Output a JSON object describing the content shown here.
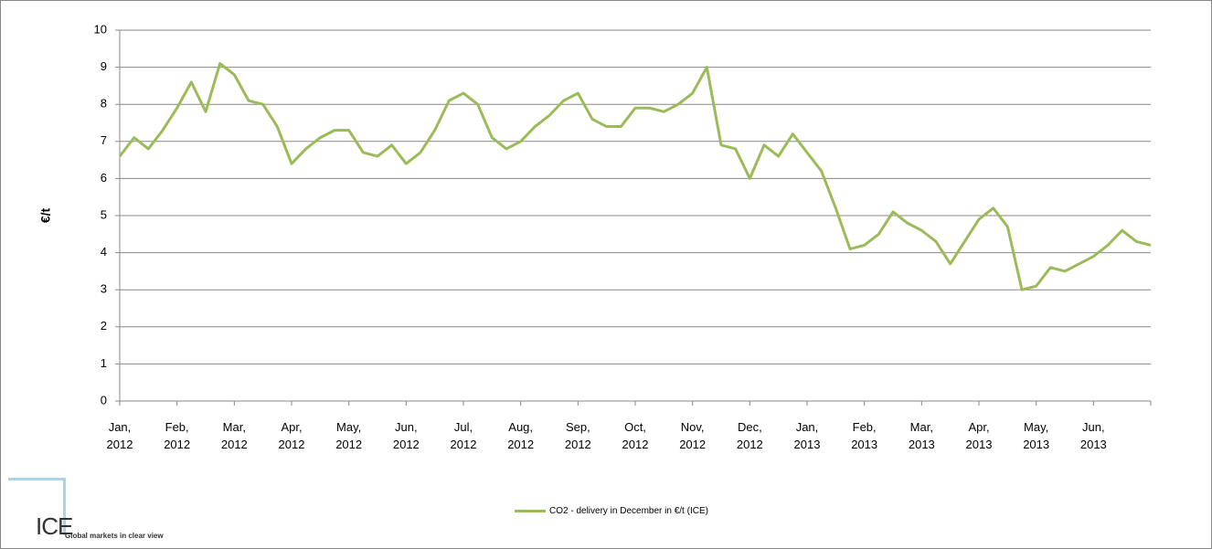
{
  "chart_data": {
    "type": "line",
    "y_label": "€/t",
    "categories": [
      "Jan, 2012",
      null,
      null,
      null,
      "Feb, 2012",
      null,
      null,
      null,
      "Mar, 2012",
      null,
      null,
      null,
      "Apr, 2012",
      null,
      null,
      null,
      "May, 2012",
      null,
      null,
      null,
      "Jun, 2012",
      null,
      null,
      null,
      "Jul, 2012",
      null,
      null,
      null,
      "Aug, 2012",
      null,
      null,
      null,
      "Sep, 2012",
      null,
      null,
      null,
      "Oct, 2012",
      null,
      null,
      null,
      "Nov, 2012",
      null,
      null,
      null,
      "Dec, 2012",
      null,
      null,
      null,
      "Jan, 2013",
      null,
      null,
      null,
      "Feb, 2013",
      null,
      null,
      null,
      "Mar, 2013",
      null,
      null,
      null,
      "Apr, 2013",
      null,
      null,
      null,
      "May, 2013",
      null,
      null,
      null,
      "Jun, 2013",
      null,
      null,
      null,
      null
    ],
    "series": [
      {
        "name": "CO2 - delivery in December in €/t (ICE)",
        "color": "#9bbb59",
        "values": [
          6.6,
          7.1,
          6.8,
          7.3,
          7.9,
          8.6,
          7.8,
          9.1,
          8.8,
          8.1,
          8.0,
          7.4,
          6.4,
          6.8,
          7.1,
          7.3,
          7.3,
          6.7,
          6.6,
          6.9,
          6.4,
          6.7,
          7.3,
          8.1,
          8.3,
          8.0,
          7.1,
          6.8,
          7.0,
          7.4,
          7.7,
          8.1,
          8.3,
          7.6,
          7.4,
          7.4,
          7.9,
          7.9,
          7.8,
          8.0,
          8.3,
          9.0,
          6.9,
          6.8,
          6.0,
          6.9,
          6.6,
          7.2,
          6.7,
          6.2,
          5.2,
          4.1,
          4.2,
          4.5,
          5.1,
          4.8,
          4.6,
          4.3,
          3.7,
          4.3,
          4.9,
          5.2,
          4.7,
          3.0,
          3.1,
          3.6,
          3.5,
          3.7,
          3.9,
          4.2,
          4.6,
          4.3,
          4.2
        ]
      }
    ],
    "ylim": [
      0,
      10
    ],
    "yticks": [
      0,
      1,
      2,
      3,
      4,
      5,
      6,
      7,
      8,
      9,
      10
    ],
    "grid": true,
    "legend": "bottom"
  },
  "logo": {
    "name": "ICE",
    "tagline": "Global markets in clear view"
  }
}
